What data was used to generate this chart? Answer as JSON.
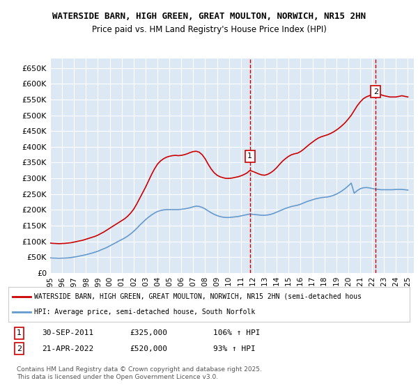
{
  "title1": "WATERSIDE BARN, HIGH GREEN, GREAT MOULTON, NORWICH, NR15 2HN",
  "title2": "Price paid vs. HM Land Registry's House Price Index (HPI)",
  "ylabel_ticks": [
    "£0",
    "£50K",
    "£100K",
    "£150K",
    "£200K",
    "£250K",
    "£300K",
    "£350K",
    "£400K",
    "£450K",
    "£500K",
    "£550K",
    "£600K",
    "£650K"
  ],
  "ytick_values": [
    0,
    50000,
    100000,
    150000,
    200000,
    250000,
    300000,
    350000,
    400000,
    450000,
    500000,
    550000,
    600000,
    650000
  ],
  "ylim": [
    0,
    680000
  ],
  "xlim_start": 1995.0,
  "xlim_end": 2025.5,
  "background_color": "#dce9f5",
  "plot_bg_color": "#dce9f5",
  "red_color": "#cc0000",
  "blue_color": "#6699cc",
  "marker1_x": 2011.75,
  "marker1_y": 325000,
  "marker1_label": "1",
  "marker2_x": 2022.3,
  "marker2_y": 520000,
  "marker2_label": "2",
  "legend_line1": "WATERSIDE BARN, HIGH GREEN, GREAT MOULTON, NORWICH, NR15 2HN (semi-detached hous",
  "legend_line2": "HPI: Average price, semi-detached house, South Norfolk",
  "annotation1": "1    30-SEP-2011         £325,000        106% ↑ HPI",
  "annotation2": "2    21-APR-2022         £520,000          93% ↑ HPI",
  "footer": "Contains HM Land Registry data © Crown copyright and database right 2025.\nThis data is licensed under the Open Government Licence v3.0.",
  "red_x": [
    1995.0,
    1995.25,
    1995.5,
    1995.75,
    1996.0,
    1996.25,
    1996.5,
    1996.75,
    1997.0,
    1997.25,
    1997.5,
    1997.75,
    1998.0,
    1998.25,
    1998.5,
    1998.75,
    1999.0,
    1999.25,
    1999.5,
    1999.75,
    2000.0,
    2000.25,
    2000.5,
    2000.75,
    2001.0,
    2001.25,
    2001.5,
    2001.75,
    2002.0,
    2002.25,
    2002.5,
    2002.75,
    2003.0,
    2003.25,
    2003.5,
    2003.75,
    2004.0,
    2004.25,
    2004.5,
    2004.75,
    2005.0,
    2005.25,
    2005.5,
    2005.75,
    2006.0,
    2006.25,
    2006.5,
    2006.75,
    2007.0,
    2007.25,
    2007.5,
    2007.75,
    2008.0,
    2008.25,
    2008.5,
    2008.75,
    2009.0,
    2009.25,
    2009.5,
    2009.75,
    2010.0,
    2010.25,
    2010.5,
    2010.75,
    2011.0,
    2011.25,
    2011.5,
    2011.75,
    2012.0,
    2012.25,
    2012.5,
    2012.75,
    2013.0,
    2013.25,
    2013.5,
    2013.75,
    2014.0,
    2014.25,
    2014.5,
    2014.75,
    2015.0,
    2015.25,
    2015.5,
    2015.75,
    2016.0,
    2016.25,
    2016.5,
    2016.75,
    2017.0,
    2017.25,
    2017.5,
    2017.75,
    2018.0,
    2018.25,
    2018.5,
    2018.75,
    2019.0,
    2019.25,
    2019.5,
    2019.75,
    2020.0,
    2020.25,
    2020.5,
    2020.75,
    2021.0,
    2021.25,
    2021.5,
    2021.75,
    2022.0,
    2022.25,
    2022.5,
    2022.75,
    2023.0,
    2023.25,
    2023.5,
    2023.75,
    2024.0,
    2024.25,
    2024.5,
    2024.75,
    2025.0
  ],
  "red_y": [
    95000,
    94000,
    93500,
    93000,
    93500,
    94000,
    95000,
    96000,
    98000,
    100000,
    102000,
    104000,
    107000,
    110000,
    113000,
    116000,
    120000,
    125000,
    130000,
    136000,
    142000,
    148000,
    154000,
    160000,
    166000,
    172000,
    180000,
    190000,
    202000,
    218000,
    236000,
    254000,
    272000,
    292000,
    312000,
    330000,
    345000,
    355000,
    362000,
    367000,
    370000,
    372000,
    373000,
    372000,
    373000,
    375000,
    378000,
    382000,
    385000,
    386000,
    383000,
    375000,
    362000,
    345000,
    330000,
    318000,
    310000,
    305000,
    302000,
    300000,
    300000,
    301000,
    303000,
    305000,
    308000,
    312000,
    317000,
    325000,
    322000,
    318000,
    314000,
    311000,
    310000,
    313000,
    318000,
    325000,
    334000,
    345000,
    355000,
    363000,
    370000,
    375000,
    378000,
    380000,
    385000,
    392000,
    400000,
    408000,
    415000,
    422000,
    428000,
    432000,
    435000,
    438000,
    442000,
    447000,
    453000,
    460000,
    468000,
    477000,
    488000,
    500000,
    515000,
    530000,
    542000,
    552000,
    558000,
    562000,
    565000,
    568000,
    568000,
    565000,
    562000,
    560000,
    558000,
    558000,
    558000,
    560000,
    562000,
    560000,
    558000
  ],
  "blue_x": [
    1995.0,
    1995.25,
    1995.5,
    1995.75,
    1996.0,
    1996.25,
    1996.5,
    1996.75,
    1997.0,
    1997.25,
    1997.5,
    1997.75,
    1998.0,
    1998.25,
    1998.5,
    1998.75,
    1999.0,
    1999.25,
    1999.5,
    1999.75,
    2000.0,
    2000.25,
    2000.5,
    2000.75,
    2001.0,
    2001.25,
    2001.5,
    2001.75,
    2002.0,
    2002.25,
    2002.5,
    2002.75,
    2003.0,
    2003.25,
    2003.5,
    2003.75,
    2004.0,
    2004.25,
    2004.5,
    2004.75,
    2005.0,
    2005.25,
    2005.5,
    2005.75,
    2006.0,
    2006.25,
    2006.5,
    2006.75,
    2007.0,
    2007.25,
    2007.5,
    2007.75,
    2008.0,
    2008.25,
    2008.5,
    2008.75,
    2009.0,
    2009.25,
    2009.5,
    2009.75,
    2010.0,
    2010.25,
    2010.5,
    2010.75,
    2011.0,
    2011.25,
    2011.5,
    2011.75,
    2012.0,
    2012.25,
    2012.5,
    2012.75,
    2013.0,
    2013.25,
    2013.5,
    2013.75,
    2014.0,
    2014.25,
    2014.5,
    2014.75,
    2015.0,
    2015.25,
    2015.5,
    2015.75,
    2016.0,
    2016.25,
    2016.5,
    2016.75,
    2017.0,
    2017.25,
    2017.5,
    2017.75,
    2018.0,
    2018.25,
    2018.5,
    2018.75,
    2019.0,
    2019.25,
    2019.5,
    2019.75,
    2020.0,
    2020.25,
    2020.5,
    2020.75,
    2021.0,
    2021.25,
    2021.5,
    2021.75,
    2022.0,
    2022.25,
    2022.5,
    2022.75,
    2023.0,
    2023.25,
    2023.5,
    2023.75,
    2024.0,
    2024.25,
    2024.5,
    2024.75,
    2025.0
  ],
  "blue_y": [
    48000,
    47500,
    47200,
    47000,
    47200,
    47500,
    48000,
    49000,
    50500,
    52000,
    54000,
    56000,
    58000,
    60500,
    63000,
    66000,
    69000,
    73000,
    77000,
    81000,
    86000,
    91000,
    96000,
    101000,
    106000,
    111000,
    117000,
    124000,
    132000,
    141000,
    151000,
    160000,
    169000,
    177000,
    184000,
    190000,
    195000,
    198000,
    200000,
    201000,
    201000,
    201000,
    201000,
    201000,
    202000,
    203000,
    205000,
    207000,
    210000,
    212000,
    211000,
    208000,
    203000,
    197000,
    191000,
    186000,
    182000,
    179000,
    177000,
    176000,
    176000,
    177000,
    178000,
    179000,
    181000,
    183000,
    185000,
    187000,
    186000,
    185000,
    184000,
    183000,
    183000,
    184000,
    186000,
    189000,
    193000,
    197000,
    201000,
    205000,
    208000,
    211000,
    213000,
    215000,
    218000,
    222000,
    226000,
    229000,
    232000,
    235000,
    237000,
    239000,
    240000,
    241000,
    243000,
    246000,
    250000,
    255000,
    261000,
    268000,
    276000,
    285000,
    253000,
    261000,
    267000,
    270000,
    271000,
    270000,
    268000,
    266000,
    265000,
    264000,
    264000,
    264000,
    264000,
    264000,
    265000,
    265000,
    265000,
    264000,
    263000
  ]
}
